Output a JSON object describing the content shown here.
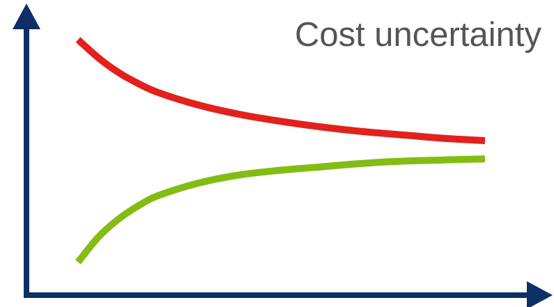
{
  "title": "Cost uncertainty",
  "colors": {
    "axis": "#0d2f66",
    "upper_curve": "#e3211c",
    "lower_curve": "#84bc14",
    "title_text": "#555555"
  },
  "chart_data": {
    "type": "line",
    "title": "Cost uncertainty",
    "xlabel": "",
    "ylabel": "",
    "axis_ticks": false,
    "grid": false,
    "legend": "none",
    "series": [
      {
        "role": "upper-bound",
        "color": "#e3211c",
        "x": [
          0.0,
          0.05,
          0.1,
          0.15,
          0.2,
          0.3,
          0.4,
          0.5,
          0.6,
          0.7,
          0.8,
          0.9,
          1.0
        ],
        "y": [
          1.0,
          0.84,
          0.71,
          0.61,
          0.53,
          0.42,
          0.34,
          0.28,
          0.23,
          0.19,
          0.16,
          0.13,
          0.11
        ]
      },
      {
        "role": "lower-bound",
        "color": "#84bc14",
        "x": [
          0.0,
          0.05,
          0.1,
          0.15,
          0.2,
          0.3,
          0.4,
          0.5,
          0.6,
          0.7,
          0.8,
          0.9,
          1.0
        ],
        "y": [
          -0.96,
          -0.74,
          -0.58,
          -0.46,
          -0.37,
          -0.26,
          -0.19,
          -0.15,
          -0.12,
          -0.09,
          -0.07,
          -0.06,
          -0.05
        ]
      }
    ]
  }
}
